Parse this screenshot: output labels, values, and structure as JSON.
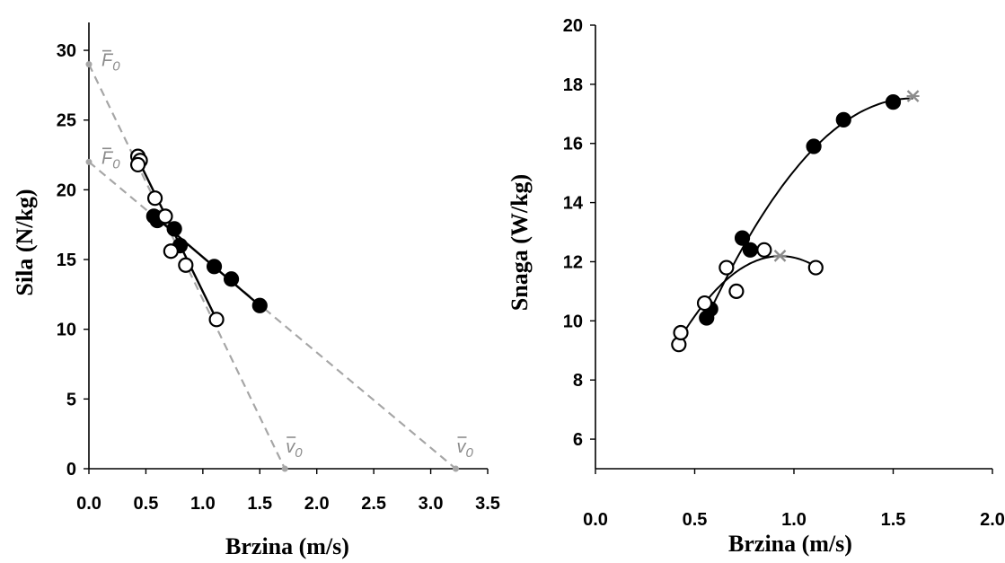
{
  "chart_data": [
    {
      "type": "scatter",
      "xlabel": "Brzina (m/s)",
      "ylabel": "Sila (N/kg)",
      "xlim": [
        0,
        3.5
      ],
      "ylim": [
        0,
        32
      ],
      "x_ticks": [
        "0.0",
        "0.5",
        "1.0",
        "1.5",
        "2.0",
        "2.5",
        "3.0",
        "3.5"
      ],
      "y_ticks": [
        "0",
        "5",
        "10",
        "15",
        "20",
        "25",
        "30"
      ],
      "annotations": [
        {
          "text": "F",
          "sub": "0",
          "overbar": true,
          "x": 0.0,
          "y": 29.0
        },
        {
          "text": "F",
          "sub": "0",
          "overbar": true,
          "x": 0.0,
          "y": 22.0
        },
        {
          "text": "v",
          "sub": "0",
          "overbar": true,
          "x": 1.72,
          "y": 0.0
        },
        {
          "text": "v",
          "sub": "0",
          "overbar": true,
          "x": 3.22,
          "y": 0.0
        }
      ],
      "series": [
        {
          "marker": "filled",
          "x": [
            0.57,
            0.6,
            0.75,
            0.8,
            1.1,
            1.25,
            1.5
          ],
          "y": [
            18.1,
            17.8,
            17.2,
            16.0,
            14.5,
            13.6,
            11.7
          ],
          "fit_x": [
            0.55,
            1.5
          ],
          "fit_y": [
            18.3,
            11.7
          ],
          "extrapolation": [
            [
              0.0,
              22.0
            ],
            [
              3.22,
              0.0
            ]
          ]
        },
        {
          "marker": "open",
          "x": [
            0.43,
            0.45,
            0.43,
            0.58,
            0.67,
            0.72,
            0.85,
            1.12
          ],
          "y": [
            22.4,
            22.1,
            21.8,
            19.4,
            18.1,
            15.6,
            14.6,
            10.7
          ],
          "fit_x": [
            0.43,
            1.12
          ],
          "fit_y": [
            22.2,
            10.7
          ],
          "extrapolation": [
            [
              0.0,
              29.0
            ],
            [
              1.72,
              0.0
            ]
          ]
        }
      ]
    },
    {
      "type": "scatter",
      "xlabel": "Brzina (m/s)",
      "ylabel": "Snaga (W/kg)",
      "xlim": [
        0,
        2.0
      ],
      "ylim": [
        5,
        20
      ],
      "x_ticks": [
        "0.0",
        "0.5",
        "1.0",
        "1.5",
        "2.0"
      ],
      "y_ticks": [
        "6",
        "8",
        "10",
        "12",
        "14",
        "16",
        "18",
        "20"
      ],
      "series": [
        {
          "marker": "filled",
          "x": [
            0.56,
            0.58,
            0.74,
            0.78,
            1.1,
            1.25,
            1.5
          ],
          "y": [
            10.1,
            10.4,
            12.8,
            12.4,
            15.9,
            16.8,
            17.4
          ],
          "peak": [
            1.6,
            17.6
          ]
        },
        {
          "marker": "open",
          "x": [
            0.42,
            0.43,
            0.55,
            0.66,
            0.71,
            0.85,
            1.11
          ],
          "y": [
            9.2,
            9.6,
            10.6,
            11.8,
            11.0,
            12.4,
            11.8
          ],
          "peak": [
            0.93,
            12.2
          ]
        }
      ]
    }
  ]
}
